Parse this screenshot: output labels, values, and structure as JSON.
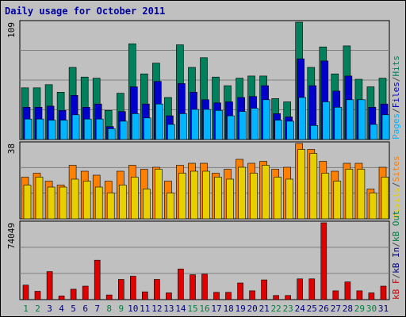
{
  "chart_data": {
    "type": "bar",
    "title": "Daily usage for October 2011",
    "categories": [
      "1",
      "2",
      "3",
      "4",
      "5",
      "6",
      "7",
      "8",
      "9",
      "10",
      "11",
      "12",
      "13",
      "14",
      "15",
      "16",
      "17",
      "18",
      "19",
      "20",
      "21",
      "22",
      "23",
      "24",
      "25",
      "26",
      "27",
      "28",
      "29",
      "30",
      "31"
    ],
    "weekend_days": [
      "1",
      "2",
      "8",
      "9",
      "15",
      "16",
      "22",
      "23",
      "29",
      "30"
    ],
    "panels": [
      {
        "id": "hits",
        "ymax_label": "109",
        "ylim": [
          0,
          109
        ],
        "legend": [
          {
            "text": "Pages",
            "color": "#00b5ff"
          },
          {
            "text": "/",
            "color": "#444444"
          },
          {
            "text": "Files",
            "color": "#0000cc"
          },
          {
            "text": "/",
            "color": "#444444"
          },
          {
            "text": "Hits",
            "color": "#00805c"
          }
        ],
        "series": [
          {
            "name": "Hits",
            "color": "#00805c",
            "values": [
              48,
              48,
              51,
              44,
              67,
              58,
              57,
              27,
              43,
              89,
              61,
              71,
              39,
              88,
              67,
              76,
              58,
              50,
              57,
              59,
              59,
              38,
              35,
              109,
              67,
              86,
              61,
              87,
              56,
              49,
              57
            ]
          },
          {
            "name": "Files",
            "color": "#0000cc",
            "values": [
              30,
              30,
              31,
              27,
              41,
              30,
              33,
              12,
              26,
              49,
              33,
              54,
              22,
              52,
              44,
              37,
              34,
              35,
              39,
              40,
              50,
              24,
              21,
              75,
              50,
              73,
              45,
              59,
              37,
              30,
              33
            ]
          },
          {
            "name": "Pages",
            "color": "#00b5ff",
            "values": [
              19,
              19,
              18,
              18,
              23,
              19,
              19,
              10,
              17,
              24,
              20,
              33,
              14,
              24,
              28,
              28,
              27,
              22,
              26,
              29,
              37,
              18,
              17,
              39,
              13,
              35,
              30,
              37,
              37,
              14,
              23
            ]
          }
        ]
      },
      {
        "id": "visits",
        "ymax_label": "38",
        "ylim": [
          0,
          38
        ],
        "legend": [
          {
            "text": "Visits",
            "color": "#e8d000"
          },
          {
            "text": "/",
            "color": "#444444"
          },
          {
            "text": "Sites",
            "color": "#ff8000"
          }
        ],
        "series": [
          {
            "name": "Sites",
            "color": "#ff8000",
            "values": [
              21,
              23,
              19,
              17,
              27,
              24,
              22,
              19,
              24,
              27,
              25,
              26,
              19,
              27,
              28,
              28,
              23,
              25,
              30,
              28,
              29,
              25,
              26,
              38,
              35,
              29,
              24,
              28,
              28,
              15,
              26
            ]
          },
          {
            "name": "Visits",
            "color": "#e8d000",
            "values": [
              17,
              21,
              16,
              16,
              20,
              19,
              16,
              13,
              17,
              21,
              15,
              25,
              13,
              23,
              24,
              24,
              21,
              20,
              26,
              23,
              27,
              21,
              20,
              35,
              33,
              23,
              19,
              25,
              25,
              13,
              21
            ]
          }
        ]
      },
      {
        "id": "kbytes",
        "ymax_label": "74049",
        "ylim": [
          0,
          74049
        ],
        "legend": [
          {
            "text": "kB F",
            "color": "#cc0000"
          },
          {
            "text": "/",
            "color": "#444444"
          },
          {
            "text": "kB In",
            "color": "#000080"
          },
          {
            "text": "/",
            "color": "#444444"
          },
          {
            "text": "kB Out",
            "color": "#008040"
          }
        ],
        "series": [
          {
            "name": "kB F",
            "color": "#e00000",
            "values": [
              14000,
              8000,
              27000,
              3500,
              10000,
              13000,
              38000,
              4500,
              19500,
              22500,
              7500,
              19500,
              6500,
              29500,
              24000,
              24500,
              7000,
              7000,
              16000,
              8500,
              19000,
              4000,
              4000,
              20000,
              20000,
              74049,
              8500,
              17000,
              8500,
              6500,
              13000
            ]
          }
        ]
      }
    ]
  }
}
